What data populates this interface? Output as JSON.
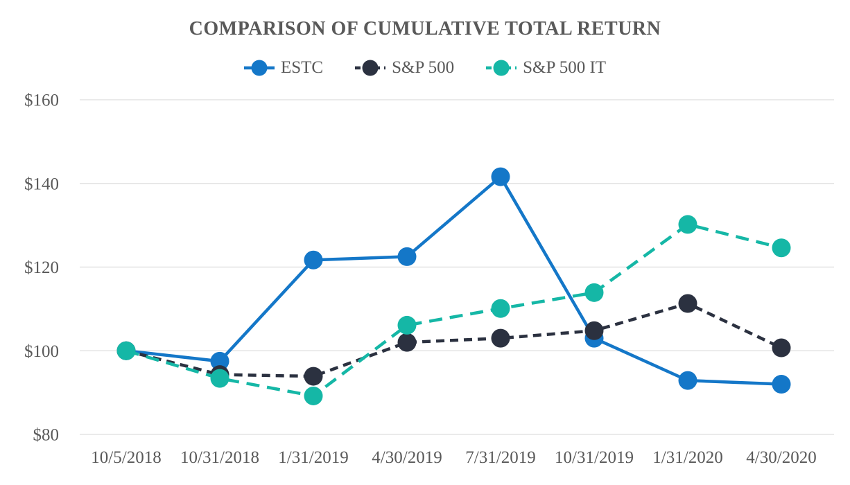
{
  "chart_data": {
    "type": "line",
    "title": "COMPARISON OF CUMULATIVE TOTAL RETURN",
    "x": [
      "10/5/2018",
      "10/31/2018",
      "1/31/2019",
      "4/30/2019",
      "7/31/2019",
      "10/31/2019",
      "1/31/2020",
      "4/30/2020"
    ],
    "series": [
      {
        "name": "ESTC",
        "color": "#1477C8",
        "line_style": "solid",
        "values": [
          100.0,
          97.5,
          121.7,
          122.5,
          141.6,
          103.0,
          92.9,
          92.0
        ]
      },
      {
        "name": "S&P 500",
        "color": "#2B3140",
        "line_style": "dashed-short",
        "values": [
          100.0,
          94.3,
          93.9,
          102.0,
          103.0,
          104.8,
          111.3,
          100.7
        ]
      },
      {
        "name": "S&P 500 IT",
        "color": "#15B7A6",
        "line_style": "dashed-long",
        "values": [
          100.0,
          93.4,
          89.2,
          106.1,
          110.1,
          113.9,
          130.2,
          124.6
        ]
      }
    ],
    "xlabel": "",
    "ylabel": "",
    "ylim": [
      80,
      160
    ],
    "yticks": [
      {
        "label": "$160",
        "value": 160
      },
      {
        "label": "$140",
        "value": 140
      },
      {
        "label": "$120",
        "value": 120
      },
      {
        "label": "$100",
        "value": 100
      },
      {
        "label": "$80",
        "value": 80
      }
    ],
    "grid": "horizontal",
    "gridline_color": "#E3E3E3",
    "text_color": "#595959",
    "legend_position": "top"
  }
}
